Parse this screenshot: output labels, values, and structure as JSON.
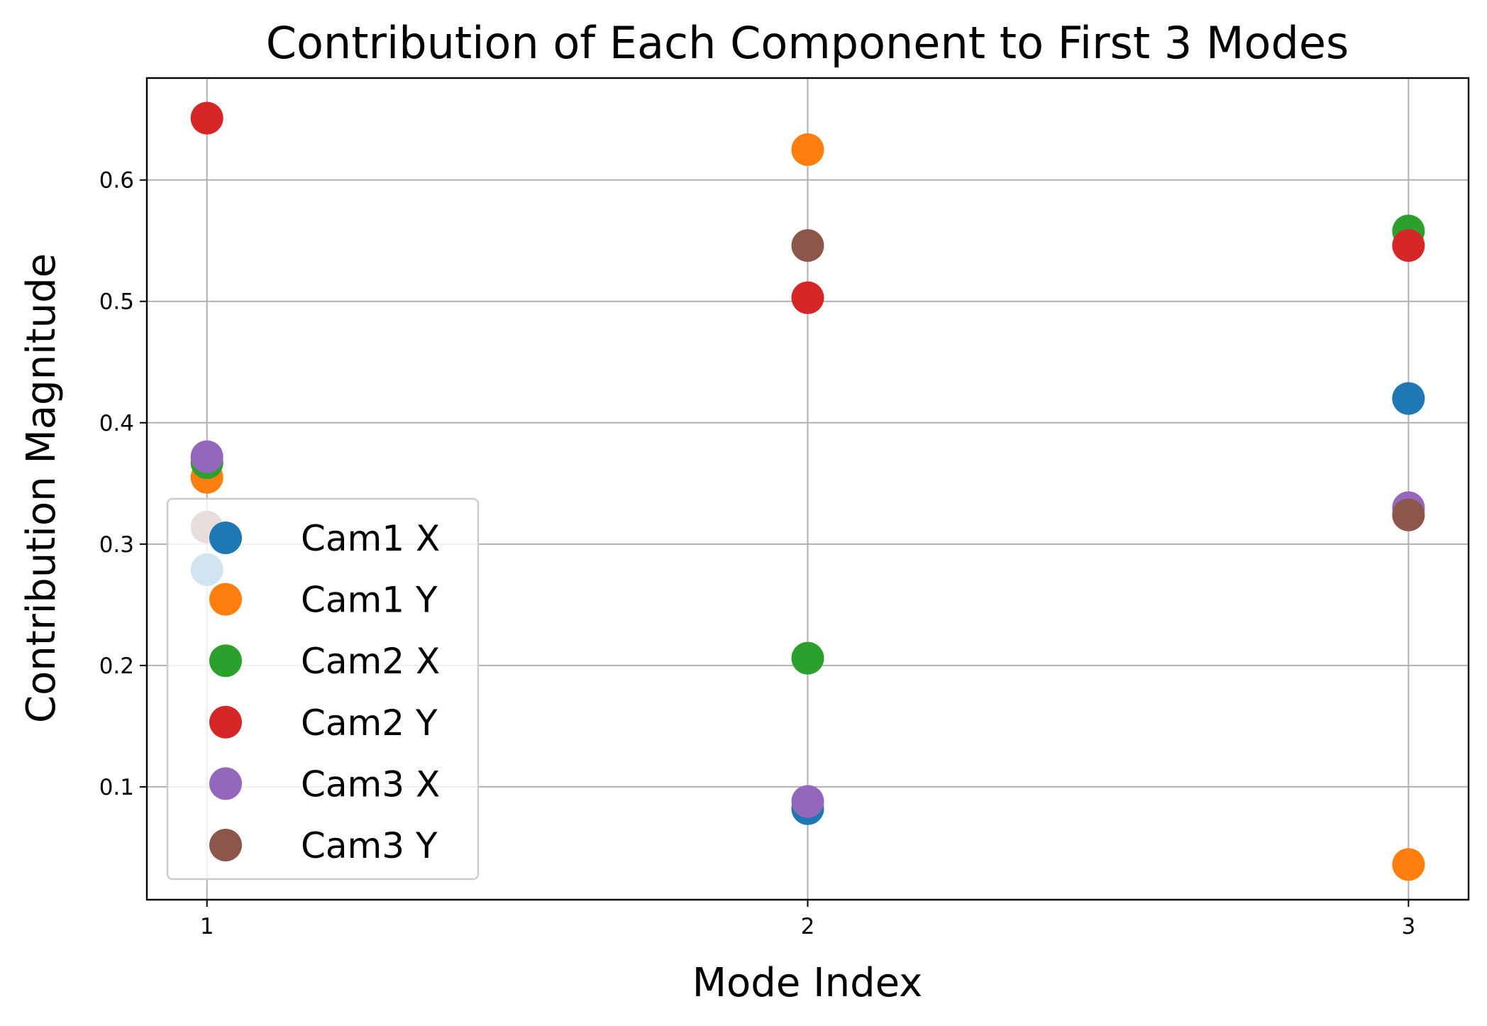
{
  "chart_data": {
    "type": "scatter",
    "title": "Contribution of Each Component to First 3 Modes",
    "xlabel": "Mode Index",
    "ylabel": "Contribution Magnitude",
    "x": [
      1,
      2,
      3
    ],
    "xlim": [
      0.9,
      3.1
    ],
    "ylim": [
      0.007,
      0.684
    ],
    "xticks": [
      "1",
      "2",
      "3"
    ],
    "yticks": [
      "0.1",
      "0.2",
      "0.3",
      "0.4",
      "0.5",
      "0.6"
    ],
    "grid": true,
    "legend_position": "lower-left",
    "series": [
      {
        "name": "Cam1 X",
        "color": "#1f77b4",
        "values": [
          0.279,
          0.082,
          0.42
        ]
      },
      {
        "name": "Cam1 Y",
        "color": "#ff7f0e",
        "values": [
          0.355,
          0.625,
          0.036
        ]
      },
      {
        "name": "Cam2 X",
        "color": "#2ca02c",
        "values": [
          0.367,
          0.206,
          0.558
        ]
      },
      {
        "name": "Cam2 Y",
        "color": "#d62728",
        "values": [
          0.651,
          0.503,
          0.546
        ]
      },
      {
        "name": "Cam3 X",
        "color": "#9467bd",
        "values": [
          0.372,
          0.088,
          0.33
        ]
      },
      {
        "name": "Cam3 Y",
        "color": "#8c564b",
        "values": [
          0.314,
          0.546,
          0.324
        ]
      }
    ]
  }
}
